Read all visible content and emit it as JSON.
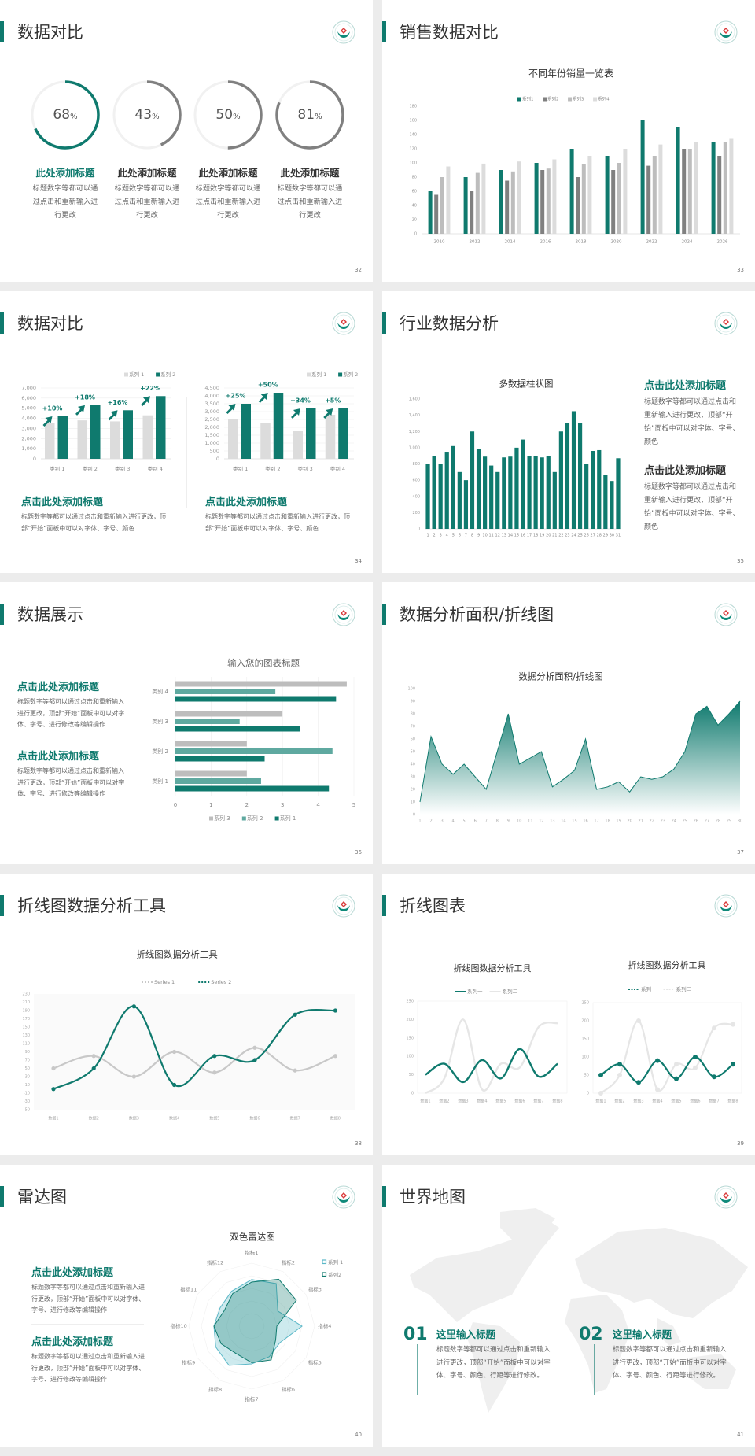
{
  "accent": "#0f7a6e",
  "colors": {
    "teal": "#0f7a6e",
    "mid_teal": "#5fa9a0",
    "dark_gray": "#808080",
    "gray": "#bdbdbd",
    "light_gray": "#dcdcdc",
    "radar_light": "#5bb8c8"
  },
  "slides": [
    {
      "title": "数据对比",
      "page": "32",
      "rings": [
        {
          "percent": 68,
          "value": "68",
          "unit": "%",
          "color": "#0f7a6e",
          "heading": "此处添加标题",
          "desc": "标题数字等都可以通过点击和重新输入进行更改"
        },
        {
          "percent": 43,
          "value": "43",
          "unit": "%",
          "color": "#808080",
          "heading": "此处添加标题",
          "desc": "标题数字等都可以通过点击和重新输入进行更改"
        },
        {
          "percent": 50,
          "value": "50",
          "unit": "%",
          "color": "#808080",
          "heading": "此处添加标题",
          "desc": "标题数字等都可以通过点击和重新输入进行更改"
        },
        {
          "percent": 81,
          "value": "81",
          "unit": "%",
          "color": "#808080",
          "heading": "此处添加标题",
          "desc": "标题数字等都可以通过点击和重新输入进行更改"
        }
      ]
    },
    {
      "title": "销售数据对比",
      "page": "33"
    },
    {
      "title": "数据对比",
      "page": "34",
      "blocks": [
        {
          "heading": "点击此处添加标题",
          "desc": "标题数字等都可以通过点击和重新输入进行更改，顶部“开始”面板中可以对字体、字号、颜色"
        },
        {
          "heading": "点击此处添加标题",
          "desc": "标题数字等都可以通过点击和重新输入进行更改，顶部“开始”面板中可以对字体、字号、颜色"
        }
      ]
    },
    {
      "title": "行业数据分析",
      "page": "35",
      "blocks": [
        {
          "heading": "点击此处添加标题",
          "desc": "标题数字等都可以通过点击和重新输入进行更改，顶部“开始”面板中可以对字体、字号、颜色"
        },
        {
          "heading": "点击此处添加标题",
          "desc": "标题数字等都可以通过点击和重新输入进行更改，顶部“开始”面板中可以对字体、字号、颜色"
        }
      ]
    },
    {
      "title": "数据展示",
      "page": "36",
      "blocks": [
        {
          "heading": "点击此处添加标题",
          "desc": "标题数字等都可以通过点击和重新输入进行更改，顶部“开始”面板中可以对字体、字号、进行修改等编辑操作"
        },
        {
          "heading": "点击此处添加标题",
          "desc": "标题数字等都可以通过点击和重新输入进行更改，顶部“开始”面板中可以对字体、字号、进行修改等编辑操作"
        }
      ]
    },
    {
      "title": "数据分析面积/折线图",
      "page": "37"
    },
    {
      "title": "折线图数据分析工具",
      "page": "38"
    },
    {
      "title": "折线图表",
      "page": "39"
    },
    {
      "title": "雷达图",
      "page": "40",
      "blocks": [
        {
          "heading": "点击此处添加标题",
          "desc": "标题数字等都可以通过点击和重新输入进行更改，顶部“开始”面板中可以对字体、字号、进行修改等编辑操作"
        },
        {
          "heading": "点击此处添加标题",
          "desc": "标题数字等都可以通过点击和重新输入进行更改，顶部“开始”面板中可以对字体、字号、进行修改等编辑操作"
        }
      ]
    },
    {
      "title": "世界地图",
      "page": "41",
      "items": [
        {
          "number": "01",
          "heading": "这里输入标题",
          "desc": "标题数字等都可以通过点击和重新输入进行更改，顶部“开始”面板中可以对字体、字号、颜色、行距等进行修改。"
        },
        {
          "number": "02",
          "heading": "这里输入标题",
          "desc": "标题数字等都可以通过点击和重新输入进行更改，顶部“开始”面板中可以对字体、字号、颜色、行距等进行修改。"
        }
      ]
    }
  ],
  "chart_data": [
    {
      "type": "bar",
      "title": "不同年份销量一览表",
      "legend": "top",
      "categories": [
        "2010",
        "2012",
        "2014",
        "2016",
        "2018",
        "2020",
        "2022",
        "2024",
        "2026"
      ],
      "ylim": [
        0,
        180
      ],
      "yticks": [
        0,
        20,
        40,
        60,
        80,
        100,
        120,
        140,
        160,
        180
      ],
      "series": [
        {
          "name": "系列1",
          "color": "#0f7a6e",
          "values": [
            60,
            80,
            90,
            100,
            120,
            110,
            160,
            150,
            130
          ]
        },
        {
          "name": "系列2",
          "color": "#808080",
          "values": [
            55,
            60,
            75,
            90,
            80,
            90,
            96,
            120,
            110
          ]
        },
        {
          "name": "系列3",
          "color": "#bdbdbd",
          "values": [
            80,
            86,
            88,
            92,
            98,
            100,
            110,
            120,
            130
          ]
        },
        {
          "name": "系列4",
          "color": "#dcdcdc",
          "values": [
            95,
            99,
            102,
            105,
            110,
            120,
            126,
            130,
            135
          ]
        }
      ]
    },
    {
      "type": "bar",
      "legend": "top-right",
      "categories": [
        "类别 1",
        "类别 2",
        "类别 3",
        "类别 4"
      ],
      "ylim": [
        0,
        7000
      ],
      "yticks": [
        0,
        1000,
        2000,
        3000,
        4000,
        5000,
        6000,
        7000
      ],
      "series": [
        {
          "name": "系列 1",
          "color": "#dcdcdc",
          "values": [
            3500,
            3800,
            3700,
            4300
          ]
        },
        {
          "name": "系列 2",
          "color": "#0f7a6e",
          "values": [
            4200,
            5300,
            4800,
            6200
          ]
        }
      ],
      "annotations": [
        "+10%",
        "+18%",
        "+16%",
        "+22%"
      ]
    },
    {
      "type": "bar",
      "legend": "top-right",
      "categories": [
        "类别 1",
        "类别 2",
        "类别 3",
        "类别 4"
      ],
      "ylim": [
        0,
        4500
      ],
      "yticks": [
        0,
        500,
        1000,
        1500,
        2000,
        2500,
        3000,
        3500,
        4000,
        4500
      ],
      "series": [
        {
          "name": "系列 1",
          "color": "#dcdcdc",
          "values": [
            2500,
            2300,
            1800,
            2800
          ]
        },
        {
          "name": "系列 2",
          "color": "#0f7a6e",
          "values": [
            3500,
            4200,
            3200,
            3200
          ]
        }
      ],
      "annotations": [
        "+25%",
        "+50%",
        "+34%",
        "+5%"
      ]
    },
    {
      "type": "bar",
      "title": "多数据柱状图",
      "categories": [
        "1",
        "2",
        "3",
        "4",
        "5",
        "6",
        "7",
        "8",
        "9",
        "10",
        "11",
        "12",
        "13",
        "14",
        "15",
        "16",
        "17",
        "18",
        "19",
        "20",
        "21",
        "22",
        "23",
        "24",
        "25",
        "26",
        "27",
        "28",
        "29",
        "30",
        "31"
      ],
      "ylim": [
        0,
        1600
      ],
      "yticks": [
        0,
        200,
        400,
        600,
        800,
        1000,
        1200,
        1400,
        1600
      ],
      "series": [
        {
          "color": "#0f7a6e",
          "values": [
            800,
            900,
            800,
            950,
            1020,
            700,
            600,
            1200,
            980,
            890,
            780,
            700,
            880,
            890,
            1000,
            1100,
            900,
            900,
            880,
            900,
            700,
            1200,
            1300,
            1450,
            1300,
            800,
            960,
            970,
            660,
            590,
            870
          ]
        }
      ]
    },
    {
      "type": "bar",
      "orientation": "horizontal",
      "title": "输入您的图表标题",
      "legend": "bottom",
      "categories": [
        "类别 1",
        "类别 2",
        "类别 3",
        "类别 4"
      ],
      "xlim": [
        0,
        5
      ],
      "xticks": [
        0,
        1,
        2,
        3,
        4,
        5
      ],
      "series": [
        {
          "name": "系列 3",
          "color": "#bdbdbd",
          "values": [
            2,
            2,
            3,
            4.8
          ]
        },
        {
          "name": "系列 2",
          "color": "#5fa9a0",
          "values": [
            2.4,
            4.4,
            1.8,
            2.8
          ]
        },
        {
          "name": "系列 1",
          "color": "#0f7a6e",
          "values": [
            4.3,
            2.5,
            3.5,
            4.5
          ]
        }
      ]
    },
    {
      "type": "area",
      "title": "数据分析面积/折线图",
      "x": [
        "1",
        "2",
        "3",
        "4",
        "5",
        "6",
        "7",
        "8",
        "9",
        "10",
        "11",
        "12",
        "13",
        "14",
        "15",
        "16",
        "17",
        "18",
        "19",
        "20",
        "21",
        "22",
        "23",
        "24",
        "25",
        "26",
        "27",
        "28",
        "29",
        "30"
      ],
      "ylim": [
        0,
        100
      ],
      "yticks": [
        0,
        10,
        20,
        30,
        40,
        50,
        60,
        70,
        80,
        90,
        100
      ],
      "series": [
        {
          "color": "#0f7a6e",
          "values": [
            10,
            62,
            40,
            32,
            40,
            30,
            20,
            50,
            80,
            40,
            45,
            50,
            22,
            28,
            35,
            60,
            20,
            22,
            26,
            18,
            30,
            28,
            30,
            36,
            50,
            80,
            86,
            71,
            80,
            90
          ]
        }
      ]
    },
    {
      "type": "line",
      "title": "折线图数据分析工具",
      "legend": "top",
      "categories": [
        "数据1",
        "数据2",
        "数据3",
        "数据4",
        "数据5",
        "数据6",
        "数据7",
        "数据8"
      ],
      "ylim": [
        -50,
        230
      ],
      "yticks": [
        -50,
        -30,
        -10,
        10,
        30,
        50,
        70,
        90,
        110,
        130,
        150,
        170,
        190,
        210,
        230
      ],
      "series": [
        {
          "name": "Series 1",
          "color": "#c8c8c8",
          "values": [
            50,
            80,
            30,
            90,
            40,
            100,
            45,
            80
          ]
        },
        {
          "name": "Series 2",
          "color": "#0f7a6e",
          "values": [
            0,
            50,
            200,
            10,
            80,
            70,
            180,
            190
          ]
        }
      ]
    },
    {
      "type": "line",
      "title": "折线图数据分析工具",
      "legend": "top",
      "categories": [
        "数据1",
        "数据2",
        "数据3",
        "数据4",
        "数据5",
        "数据6",
        "数据7",
        "数据8"
      ],
      "ylim": [
        0,
        250
      ],
      "yticks": [
        0,
        50,
        100,
        150,
        200,
        250
      ],
      "series": [
        {
          "name": "系列一",
          "color": "#0f7a6e",
          "values": [
            50,
            80,
            30,
            90,
            40,
            120,
            45,
            80
          ]
        },
        {
          "name": "系列二",
          "color": "#e6e6e6",
          "values": [
            0,
            40,
            200,
            10,
            80,
            70,
            180,
            190
          ]
        }
      ]
    },
    {
      "type": "line",
      "title": "折线图数据分析工具",
      "legend": "top",
      "categories": [
        "数据1",
        "数据2",
        "数据3",
        "数据4",
        "数据5",
        "数据6",
        "数据7",
        "数据8"
      ],
      "ylim": [
        0,
        250
      ],
      "yticks": [
        0,
        50,
        100,
        150,
        200,
        250
      ],
      "series": [
        {
          "name": "系列一",
          "color": "#0f7a6e",
          "values": [
            50,
            80,
            30,
            90,
            40,
            100,
            45,
            80
          ]
        },
        {
          "name": "系列二",
          "color": "#e6e6e6",
          "values": [
            0,
            50,
            200,
            10,
            80,
            70,
            180,
            190
          ]
        }
      ]
    },
    {
      "type": "radar",
      "title": "双色雷达图",
      "legend": "top-right",
      "categories": [
        "指标1",
        "指标2",
        "指标3",
        "指标4",
        "指标5",
        "指标6",
        "指标7",
        "指标8",
        "指标9",
        "指标10",
        "指标11",
        "指标12"
      ],
      "rlim": [
        0,
        5
      ],
      "series": [
        {
          "name": "系列 1",
          "color": "#5bb8c8",
          "values": [
            3.7,
            3.9,
            2.4,
            4.0,
            2.6,
            2.8,
            3.0,
            3.6,
            3.3,
            3.0,
            2.9,
            3.2
          ]
        },
        {
          "name": "系列2",
          "color": "#0f7a6e",
          "values": [
            3.5,
            4.3,
            4.1,
            2.0,
            2.2,
            3.1,
            2.9,
            2.5,
            2.8,
            3.0,
            2.5,
            3.0
          ]
        }
      ]
    }
  ]
}
